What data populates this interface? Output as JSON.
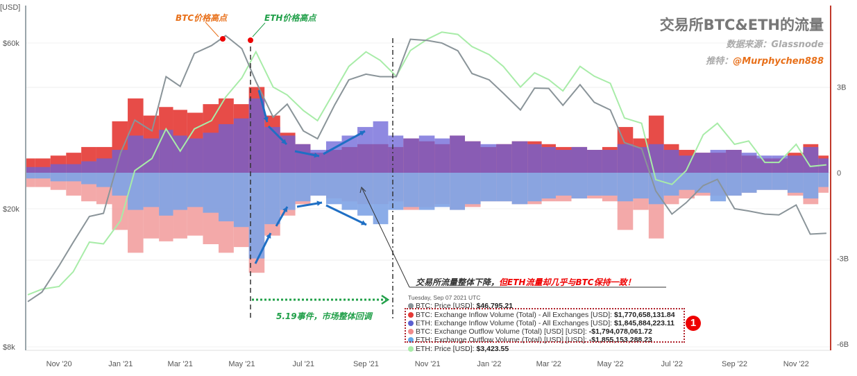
{
  "header": {
    "title": "交易所BTC&ETH的流量",
    "source": "数据来源：Glassnode",
    "twitter_label": "推特：",
    "twitter_handle": "@Murphychen888"
  },
  "annotations": {
    "btc_high": "BTC价格高点",
    "eth_high": "ETH价格高点",
    "event": "5.19事件，市场整体回调",
    "note_prefix": "交易所流量整体下降，",
    "note_highlight": "但ETH流量却几乎与BTC保持一致！",
    "badge": "1"
  },
  "tooltip": {
    "date": "Tuesday, Sep 07 2021 UTC",
    "rows": [
      {
        "label": "BTC: Price [USD]: ",
        "value": "$46,795.21",
        "color": "#8a9499"
      },
      {
        "label": "BTC: Exchange Inflow Volume (Total) - All Exchanges [USD]: ",
        "value": "$1,770,658,131.84",
        "color": "#e53935"
      },
      {
        "label": "ETH: Exchange Inflow Volume (Total) - All Exchanges [USD]: ",
        "value": "$1,845,884,223.11",
        "color": "#5a5fd0"
      },
      {
        "label": "BTC: Exchange Outflow Volume (Total) [USD] [USD]: ",
        "value": "-$1,794,078,061.72",
        "color": "#f08c8c"
      },
      {
        "label": "ETH: Exchange Outflow Volume (Total) [USD] [USD]: ",
        "value": "-$1,855,153,288.23",
        "color": "#64a8e8"
      },
      {
        "label": "ETH: Price [USD]: ",
        "value": "$3,423.55",
        "color": "#a8eca8"
      }
    ]
  },
  "chart_data": {
    "type": "bar+line",
    "left_axis": {
      "label": "[USD]",
      "scale": "log",
      "ticks": [
        "$60k",
        "$20k",
        "$8k"
      ],
      "tick_values": [
        60000,
        20000,
        8000
      ]
    },
    "right_axis": {
      "ticks": [
        "3B",
        "0",
        "-3B",
        "-6B"
      ],
      "tick_values": [
        3,
        0,
        -3,
        -6
      ],
      "unit": "billion USD",
      "color": "#c0392b"
    },
    "x_ticks": [
      "Nov '20",
      "Jan '21",
      "Mar '21",
      "May '21",
      "Jul '21",
      "Sep '21",
      "Nov '21",
      "Jan '22",
      "Mar '22",
      "May '22",
      "Jul '22",
      "Sep '22",
      "Nov '22"
    ],
    "x_tick_dates": [
      "2020-11-01",
      "2021-01-01",
      "2021-03-01",
      "2021-05-01",
      "2021-07-01",
      "2021-09-01",
      "2021-11-01",
      "2022-01-01",
      "2022-03-01",
      "2022-05-01",
      "2022-07-01",
      "2022-09-01",
      "2022-11-01"
    ],
    "x": [
      "2020-10-01",
      "2020-10-15",
      "2020-11-01",
      "2020-11-15",
      "2020-12-01",
      "2020-12-15",
      "2021-01-01",
      "2021-01-15",
      "2021-02-01",
      "2021-02-15",
      "2021-03-01",
      "2021-03-15",
      "2021-04-01",
      "2021-04-15",
      "2021-05-01",
      "2021-05-15",
      "2021-06-01",
      "2021-06-15",
      "2021-07-01",
      "2021-07-15",
      "2021-08-01",
      "2021-08-15",
      "2021-09-01",
      "2021-09-15",
      "2021-10-01",
      "2021-10-15",
      "2021-11-01",
      "2021-11-15",
      "2021-12-01",
      "2021-12-15",
      "2022-01-01",
      "2022-01-15",
      "2022-02-01",
      "2022-02-15",
      "2022-03-01",
      "2022-03-15",
      "2022-04-01",
      "2022-04-15",
      "2022-05-01",
      "2022-05-15",
      "2022-06-01",
      "2022-06-15",
      "2022-07-01",
      "2022-07-15",
      "2022-08-01",
      "2022-08-15",
      "2022-09-01",
      "2022-09-15",
      "2022-10-01",
      "2022-10-15",
      "2022-11-01",
      "2022-11-15",
      "2022-12-01"
    ],
    "series": [
      {
        "name": "BTC: Exchange Outflow Volume (Total) [USD] [USD]",
        "kind": "bar",
        "axis": "right",
        "color": "#f2a0a0",
        "values": [
          -0.5,
          -0.5,
          -0.6,
          -0.8,
          -1.0,
          -1.1,
          -2.0,
          -2.8,
          -2.3,
          -2.4,
          -2.3,
          -2.2,
          -2.5,
          -2.8,
          -2.6,
          -3.5,
          -2.2,
          -1.5,
          -1.1,
          -0.8,
          -0.9,
          -1.0,
          -1.1,
          -1.1,
          -1.0,
          -1.3,
          -1.2,
          -1.1,
          -1.3,
          -1.2,
          -1.0,
          -1.0,
          -1.1,
          -1.1,
          -1.0,
          -1.0,
          -0.9,
          -0.9,
          -1.0,
          -2.0,
          -1.3,
          -2.3,
          -1.1,
          -0.9,
          -0.8,
          -0.8,
          -0.8,
          -0.7,
          -0.6,
          -0.6,
          -0.8,
          -1.1,
          -0.7
        ]
      },
      {
        "name": "ETH: Exchange Outflow Volume (Total) [USD] [USD]",
        "kind": "bar",
        "axis": "right",
        "color": "#7fa4e6",
        "values": [
          -0.2,
          -0.2,
          -0.3,
          -0.3,
          -0.4,
          -0.5,
          -0.8,
          -1.3,
          -1.2,
          -1.5,
          -1.3,
          -1.2,
          -1.4,
          -1.7,
          -1.9,
          -3.0,
          -1.8,
          -1.3,
          -1.0,
          -0.8,
          -1.1,
          -1.3,
          -1.5,
          -1.8,
          -1.3,
          -1.2,
          -1.3,
          -1.2,
          -1.3,
          -1.1,
          -1.0,
          -1.0,
          -1.1,
          -1.0,
          -0.9,
          -0.8,
          -0.9,
          -0.8,
          -0.8,
          -1.0,
          -0.9,
          -1.1,
          -0.8,
          -0.6,
          -0.7,
          -1.0,
          -0.8,
          -0.7,
          -0.6,
          -0.6,
          -0.7,
          -0.9,
          -0.5
        ]
      },
      {
        "name": "BTC: Exchange Inflow Volume (Total) - All Exchanges [USD]",
        "kind": "bar",
        "axis": "right",
        "color": "#e53935",
        "values": [
          0.5,
          0.5,
          0.6,
          0.7,
          0.9,
          0.9,
          1.8,
          2.6,
          2.0,
          2.3,
          2.2,
          2.1,
          2.4,
          2.6,
          2.4,
          3.0,
          2.0,
          1.4,
          1.0,
          0.7,
          0.8,
          0.9,
          1.0,
          1.0,
          0.9,
          1.2,
          1.1,
          1.0,
          1.3,
          1.1,
          0.9,
          1.0,
          1.1,
          1.1,
          1.0,
          0.9,
          0.9,
          0.8,
          0.9,
          1.6,
          1.2,
          2.0,
          1.0,
          0.8,
          0.7,
          0.7,
          0.8,
          0.6,
          0.5,
          0.5,
          0.7,
          1.0,
          0.6
        ]
      },
      {
        "name": "ETH: Exchange Inflow Volume (Total) - All Exchanges [USD]",
        "kind": "bar",
        "axis": "right",
        "color": "#6a62d8",
        "values": [
          0.2,
          0.2,
          0.3,
          0.3,
          0.4,
          0.5,
          0.8,
          1.3,
          1.2,
          1.5,
          1.3,
          1.2,
          1.4,
          1.7,
          1.9,
          2.6,
          1.6,
          1.3,
          1.0,
          0.8,
          1.1,
          1.3,
          1.6,
          1.8,
          1.3,
          1.2,
          1.3,
          1.2,
          1.3,
          1.1,
          1.0,
          1.0,
          1.1,
          1.0,
          0.9,
          0.8,
          0.9,
          0.8,
          0.8,
          1.0,
          0.9,
          1.0,
          0.8,
          0.6,
          0.7,
          0.8,
          0.8,
          0.7,
          0.6,
          0.6,
          0.6,
          0.9,
          0.5
        ]
      },
      {
        "name": "ETH: Price [USD]",
        "kind": "line",
        "axis": "hidden-log",
        "color": "#a8eca8",
        "values": [
          360,
          380,
          390,
          450,
          600,
          590,
          740,
          1200,
          1350,
          1800,
          1450,
          1800,
          1950,
          2450,
          2950,
          3800,
          2700,
          2500,
          2150,
          1950,
          2600,
          3300,
          3800,
          3500,
          3000,
          3850,
          4300,
          4600,
          4500,
          4000,
          3700,
          3300,
          2700,
          3100,
          2900,
          2600,
          3300,
          3000,
          2800,
          2000,
          1900,
          1100,
          1050,
          1200,
          1700,
          1900,
          1550,
          1600,
          1300,
          1300,
          1550,
          1250,
          1270
        ]
      },
      {
        "name": "BTC: Price [USD]",
        "kind": "line",
        "axis": "left",
        "color": "#8a9499",
        "values": [
          10800,
          11500,
          13700,
          16000,
          19000,
          19400,
          29000,
          36000,
          33500,
          48000,
          45000,
          56000,
          59000,
          63000,
          57800,
          46500,
          36700,
          40000,
          33500,
          31800,
          39800,
          47000,
          48800,
          48000,
          48000,
          61500,
          61000,
          60000,
          57000,
          49000,
          47000,
          43000,
          38500,
          44500,
          44400,
          39700,
          45500,
          40500,
          38500,
          31000,
          29800,
          22500,
          19300,
          20800,
          23300,
          24300,
          20000,
          19700,
          19300,
          19200,
          20500,
          16900,
          17000
        ]
      }
    ],
    "markers": [
      {
        "label": "BTC价格高点",
        "date": "2021-04-14",
        "series": "BTC: Price [USD]"
      },
      {
        "label": "ETH价格高点",
        "date": "2021-05-12",
        "series": "ETH: Price [USD]"
      }
    ],
    "vlines": [
      "2021-05-12",
      "2021-09-07"
    ],
    "grid": true,
    "legend": "tooltip"
  }
}
